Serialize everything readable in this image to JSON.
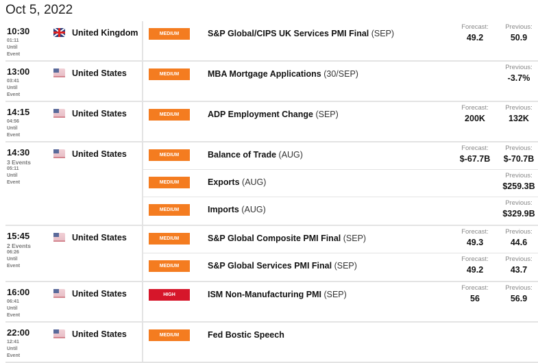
{
  "date": "Oct 5, 2022",
  "labels": {
    "forecast": "Forecast:",
    "previous": "Previous:",
    "until": "Until",
    "event": "Event"
  },
  "colors": {
    "medium": "#f47c20",
    "high": "#d6162a"
  },
  "groups": [
    {
      "time": "10:30",
      "countdown": "01:11",
      "country": "United Kingdom",
      "flag": "uk-flag-icon",
      "events": [
        {
          "impact": "MEDIUM",
          "name": "S&P Global/CIPS UK Services PMI Final",
          "period": "(SEP)",
          "forecast": "49.2",
          "previous": "50.9"
        }
      ]
    },
    {
      "time": "13:00",
      "countdown": "03:41",
      "country": "United States",
      "flag": "us-flag-icon",
      "events": [
        {
          "impact": "MEDIUM",
          "name": "MBA Mortgage Applications",
          "period": "(30/SEP)",
          "previous": "-3.7%"
        }
      ]
    },
    {
      "time": "14:15",
      "countdown": "04:56",
      "country": "United States",
      "flag": "us-flag-icon",
      "events": [
        {
          "impact": "MEDIUM",
          "name": "ADP Employment Change",
          "period": "(SEP)",
          "forecast": "200K",
          "previous": "132K"
        }
      ]
    },
    {
      "time": "14:30",
      "count": "3 Events",
      "countdown": "05:11",
      "country": "United States",
      "flag": "us-flag-icon",
      "events": [
        {
          "impact": "MEDIUM",
          "name": "Balance of Trade",
          "period": "(AUG)",
          "forecast": "$-67.7B",
          "previous": "$-70.7B"
        },
        {
          "impact": "MEDIUM",
          "name": "Exports",
          "period": "(AUG)",
          "previous": "$259.3B"
        },
        {
          "impact": "MEDIUM",
          "name": "Imports",
          "period": "(AUG)",
          "previous": "$329.9B"
        }
      ]
    },
    {
      "time": "15:45",
      "count": "2 Events",
      "countdown": "06:26",
      "country": "United States",
      "flag": "us-flag-icon",
      "events": [
        {
          "impact": "MEDIUM",
          "name": "S&P Global Composite PMI Final",
          "period": "(SEP)",
          "forecast": "49.3",
          "previous": "44.6"
        },
        {
          "impact": "MEDIUM",
          "name": "S&P Global Services PMI Final",
          "period": "(SEP)",
          "forecast": "49.2",
          "previous": "43.7"
        }
      ]
    },
    {
      "time": "16:00",
      "countdown": "06:41",
      "country": "United States",
      "flag": "us-flag-icon",
      "events": [
        {
          "impact": "HIGH",
          "name": "ISM Non-Manufacturing PMI",
          "period": "(SEP)",
          "forecast": "56",
          "previous": "56.9"
        }
      ]
    },
    {
      "time": "22:00",
      "countdown": "12:41",
      "country": "United States",
      "flag": "us-flag-icon",
      "events": [
        {
          "impact": "MEDIUM",
          "name": "Fed Bostic Speech"
        }
      ]
    }
  ]
}
